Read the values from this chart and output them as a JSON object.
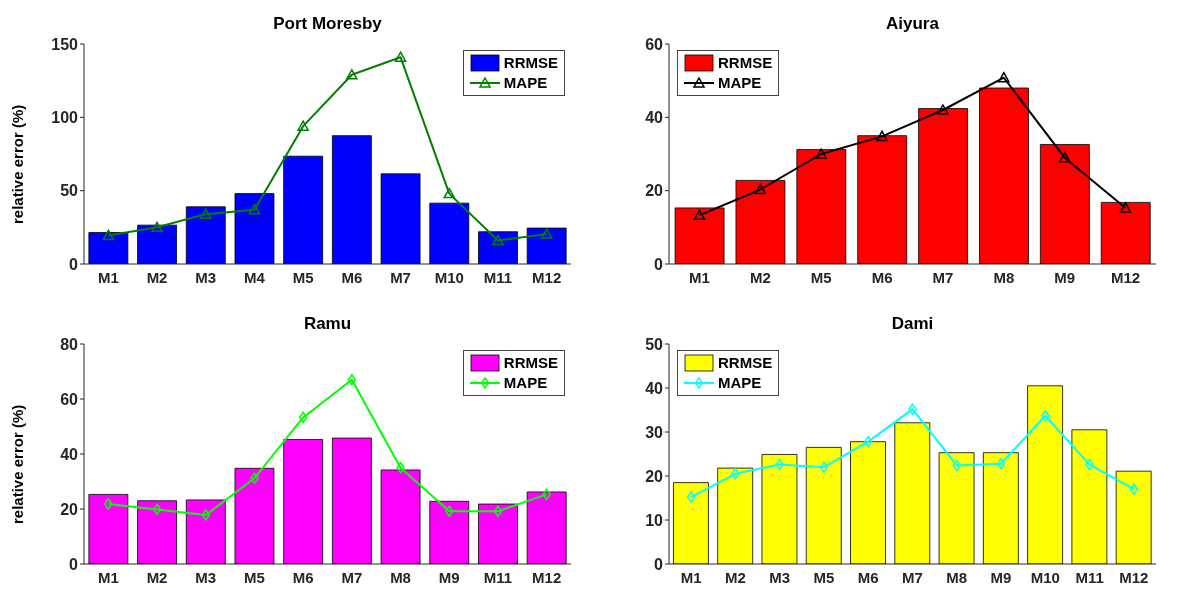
{
  "chart_data": [
    {
      "type": "bar",
      "title": "Port Moresby",
      "ylabel": "relative error (%)",
      "categories": [
        "M1",
        "M2",
        "M3",
        "M4",
        "M5",
        "M6",
        "M7",
        "M10",
        "M11",
        "M12"
      ],
      "ylim": [
        0,
        150
      ],
      "yticks": [
        0,
        50,
        100,
        150
      ],
      "legend": "top right",
      "marker": "triangle",
      "series": [
        {
          "name": "RRMSE",
          "color": "#0000ff",
          "values": [
            21.5,
            26.5,
            39,
            48,
            73.5,
            87.5,
            61.5,
            41.5,
            22,
            24.5
          ]
        },
        {
          "name": "MAPE",
          "type": "line",
          "color": "#008000",
          "values": [
            19.5,
            25,
            34,
            37,
            94,
            129,
            141,
            48,
            16,
            20.5
          ]
        }
      ]
    },
    {
      "type": "bar",
      "title": "Aiyura",
      "categories": [
        "M1",
        "M2",
        "M5",
        "M6",
        "M7",
        "M8",
        "M9",
        "M12"
      ],
      "ylim": [
        0,
        60
      ],
      "yticks": [
        0,
        20,
        40,
        60
      ],
      "legend": "top left",
      "marker": "triangle",
      "series": [
        {
          "name": "RRMSE",
          "color": "#ff0000",
          "values": [
            15.3,
            22.8,
            31.2,
            35,
            42.4,
            48,
            32.6,
            16.8
          ]
        },
        {
          "name": "MAPE",
          "type": "line",
          "color": "#000000",
          "values": [
            13.3,
            20.3,
            30,
            34.8,
            42,
            50.8,
            29,
            15.3
          ]
        }
      ]
    },
    {
      "type": "bar",
      "title": "Ramu",
      "ylabel": "relative error (%)",
      "categories": [
        "M1",
        "M2",
        "M3",
        "M5",
        "M6",
        "M7",
        "M8",
        "M9",
        "M11",
        "M12"
      ],
      "ylim": [
        0,
        80
      ],
      "yticks": [
        0,
        20,
        40,
        60,
        80
      ],
      "legend": "top right",
      "marker": "diamond",
      "series": [
        {
          "name": "RRMSE",
          "color": "#ff00ff",
          "values": [
            25.3,
            23,
            23.3,
            34.8,
            45.3,
            45.8,
            34.2,
            22.8,
            21.8,
            26.2
          ]
        },
        {
          "name": "MAPE",
          "type": "line",
          "color": "#00ff00",
          "values": [
            21.8,
            19.8,
            17.8,
            31.2,
            53.3,
            67,
            35,
            19.2,
            19.2,
            25.3
          ]
        }
      ]
    },
    {
      "type": "bar",
      "title": "Dami",
      "categories": [
        "M1",
        "M2",
        "M3",
        "M5",
        "M6",
        "M7",
        "M8",
        "M9",
        "M10",
        "M11",
        "M12"
      ],
      "ylim": [
        0,
        50
      ],
      "yticks": [
        0,
        10,
        20,
        30,
        40,
        50
      ],
      "legend": "top left",
      "marker": "diamond",
      "series": [
        {
          "name": "RRMSE",
          "color": "#ffff00",
          "values": [
            18.5,
            21.8,
            24.9,
            26.5,
            27.8,
            32.1,
            25.3,
            25.3,
            40.5,
            30.5,
            21.1
          ]
        },
        {
          "name": "MAPE",
          "type": "line",
          "color": "#00ffff",
          "values": [
            15.2,
            20.5,
            22.6,
            22,
            27.8,
            35.2,
            22.4,
            22.8,
            33.7,
            22.6,
            17
          ]
        }
      ]
    }
  ]
}
